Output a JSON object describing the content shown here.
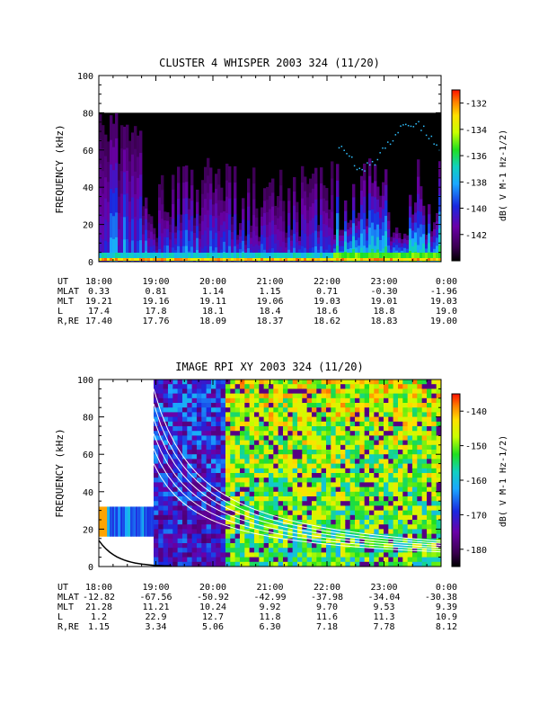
{
  "chart_data": [
    {
      "type": "heatmap",
      "title": "CLUSTER 4 WHISPER 2003 324 (11/20)",
      "ylabel": "FREQUENCY (kHz)",
      "ylim": [
        0,
        100
      ],
      "yticks": [
        "0",
        "20",
        "40",
        "60",
        "80",
        "100"
      ],
      "xlim": [
        "18:00",
        "0:00"
      ],
      "colorbar": {
        "label": "dB( V M-1 Hz-1/2)",
        "range": [
          -144,
          -131
        ],
        "ticks": [
          "-132",
          "-134",
          "-136",
          "-138",
          "-140",
          "-142"
        ],
        "tick_values": [
          -132,
          -134,
          -136,
          -138,
          -140,
          -142
        ]
      },
      "data_max_frequency": 80,
      "ephemeris": {
        "row_labels": [
          "UT",
          "MLAT",
          "MLT",
          "L",
          "R,RE"
        ],
        "columns": [
          [
            "18:00",
            "0.33",
            "19.21",
            "17.4",
            "17.40"
          ],
          [
            "19:00",
            "0.81",
            "19.16",
            "17.8",
            "17.76"
          ],
          [
            "20:00",
            "1.14",
            "19.11",
            "18.1",
            "18.09"
          ],
          [
            "21:00",
            "1.15",
            "19.06",
            "18.4",
            "18.37"
          ],
          [
            "22:00",
            "0.71",
            "19.03",
            "18.6",
            "18.62"
          ],
          [
            "23:00",
            "-0.30",
            "19.01",
            "18.8",
            "18.83"
          ],
          [
            "0:00",
            "-1.96",
            "19.03",
            "19.0",
            "19.00"
          ]
        ]
      }
    },
    {
      "type": "heatmap",
      "title": "IMAGE RPI XY 2003 324 (11/20)",
      "ylabel": "FREQUENCY (kHz)",
      "ylim": [
        0,
        100
      ],
      "yticks": [
        "0",
        "20",
        "40",
        "60",
        "80",
        "100"
      ],
      "xlim": [
        "18:00",
        "0:00"
      ],
      "colorbar": {
        "label": "dB( V M-1 Hz-1/2)",
        "range": [
          -185,
          -135
        ],
        "ticks": [
          "-140",
          "-150",
          "-160",
          "-170",
          "-180"
        ],
        "tick_values": [
          -140,
          -150,
          -160,
          -170,
          -180
        ]
      },
      "ephemeris": {
        "row_labels": [
          "UT",
          "MLAT",
          "MLT",
          "L",
          "R,RE"
        ],
        "columns": [
          [
            "18:00",
            "-12.82",
            "21.28",
            "1.2",
            "1.15"
          ],
          [
            "19:00",
            "-67.56",
            "11.21",
            "22.9",
            "3.34"
          ],
          [
            "20:00",
            "-50.92",
            "10.24",
            "12.7",
            "5.06"
          ],
          [
            "21:00",
            "-42.99",
            "9.92",
            "11.8",
            "6.30"
          ],
          [
            "22:00",
            "-37.98",
            "9.70",
            "11.6",
            "7.18"
          ],
          [
            "23:00",
            "-34.04",
            "9.53",
            "11.3",
            "7.78"
          ],
          [
            "0:00",
            "-30.38",
            "9.39",
            "10.9",
            "8.12"
          ]
        ]
      }
    }
  ]
}
